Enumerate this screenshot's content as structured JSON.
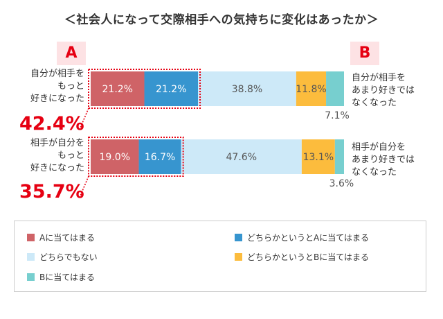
{
  "title": "＜社会人になって交際相手への気持ちに変化はあったか＞",
  "marker_a": "A",
  "marker_b": "B",
  "colors": {
    "a": "#cf6367",
    "rather_a": "#3795cf",
    "neither": "#cde9f8",
    "rather_b": "#fcbc3d",
    "b": "#77cfcf",
    "accent": "#e60012"
  },
  "rows": [
    {
      "left_label": [
        "自分が相手を",
        "もっと",
        "好きになった"
      ],
      "right_label": [
        "自分が相手を",
        "あまり好きでは",
        "なくなった"
      ],
      "combined": "42.4%"
    },
    {
      "left_label": [
        "相手が自分を",
        "もっと",
        "好きになった"
      ],
      "right_label": [
        "相手が自分を",
        "あまり好きでは",
        "なくなった"
      ],
      "combined": "35.7%"
    }
  ],
  "legend": {
    "a": "Aに当てはまる",
    "rather_a": "どちらかというとAに当てはまる",
    "neither": "どちらでもない",
    "rather_b": "どちらかというとBに当てはまる",
    "b": "Bに当てはまる"
  },
  "chart_data": {
    "type": "bar",
    "orientation": "horizontal",
    "stacked": true,
    "xlim": [
      0,
      100
    ],
    "categories": [
      "自分が相手をもっと好きになった / 自分が相手をあまり好きではなくなった",
      "相手が自分をもっと好きになった / 相手が自分をあまり好きではなくなった"
    ],
    "series": [
      {
        "name": "Aに当てはまる",
        "values": [
          21.2,
          19.0
        ],
        "labels": [
          "21.2%",
          "19.0%"
        ]
      },
      {
        "name": "どちらかというとAに当てはまる",
        "values": [
          21.2,
          16.7
        ],
        "labels": [
          "21.2%",
          "16.7%"
        ]
      },
      {
        "name": "どちらでもない",
        "values": [
          38.8,
          47.6
        ],
        "labels": [
          "38.8%",
          "47.6%"
        ]
      },
      {
        "name": "どちらかというとBに当てはまる",
        "values": [
          11.8,
          13.1
        ],
        "labels": [
          "11.8%",
          "13.1%"
        ]
      },
      {
        "name": "Bに当てはまる",
        "values": [
          7.1,
          3.6
        ],
        "labels": [
          "7.1%",
          "3.6%"
        ]
      }
    ],
    "totals_a": [
      "42.4%",
      "35.7%"
    ],
    "legend_position": "bottom"
  }
}
